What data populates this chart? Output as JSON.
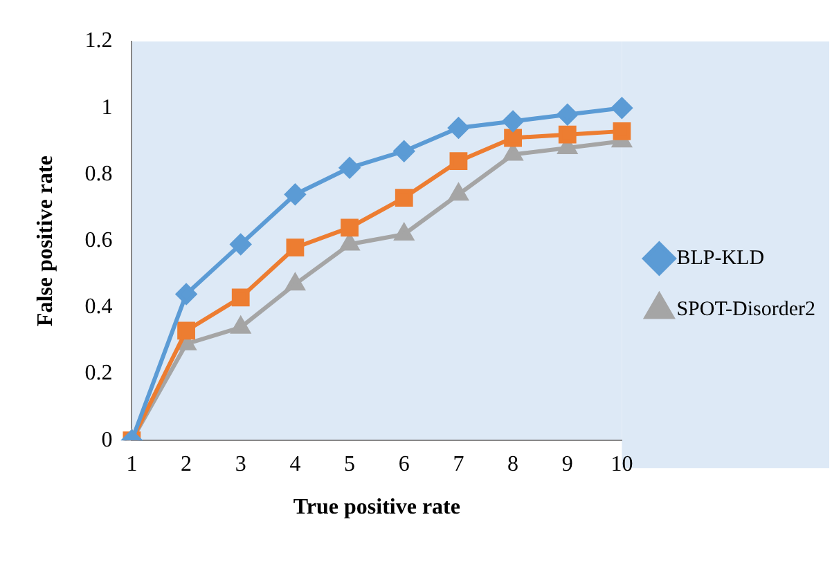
{
  "chart_data": {
    "type": "line",
    "xlabel": "True positive rate",
    "ylabel": "False positive rate",
    "categories": [
      "1",
      "2",
      "3",
      "4",
      "5",
      "6",
      "7",
      "8",
      "9",
      "10"
    ],
    "series": [
      {
        "name": "BLP-KLD",
        "color": "#5b9bd5",
        "marker": "diamond",
        "values": [
          0,
          0.44,
          0.59,
          0.74,
          0.82,
          0.87,
          0.94,
          0.96,
          0.98,
          1.0
        ]
      },
      {
        "color": "#ed7d31",
        "marker": "square",
        "values": [
          0,
          0.33,
          0.43,
          0.58,
          0.64,
          0.73,
          0.84,
          0.91,
          0.92,
          0.93
        ]
      },
      {
        "name": "SPOT-Disorder2",
        "color": "#a5a5a5",
        "marker": "triangle",
        "values": [
          0,
          0.29,
          0.34,
          0.47,
          0.59,
          0.62,
          0.74,
          0.86,
          0.88,
          0.9
        ]
      }
    ],
    "ylim": [
      0,
      1.2
    ],
    "yticks": [
      0,
      0.2,
      0.4,
      0.6,
      0.8,
      1,
      1.2
    ],
    "grid": false,
    "legend": "right"
  }
}
